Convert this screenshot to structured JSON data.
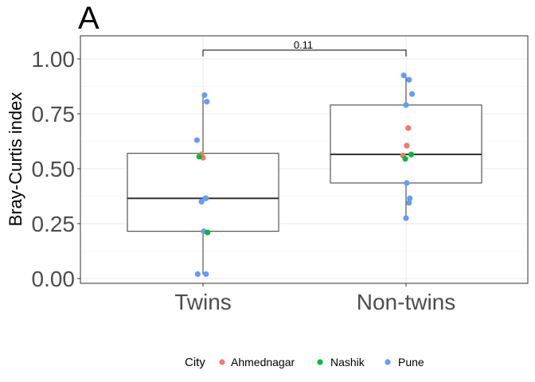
{
  "chart_data": {
    "type": "box",
    "panel_label": "A",
    "title": "",
    "xlabel": "",
    "ylabel": "Bray-Curtis index",
    "ylim": [
      0.0,
      1.0
    ],
    "yticks": [
      "0.00",
      "0.25",
      "0.50",
      "0.75",
      "1.00"
    ],
    "grid": true,
    "categories": [
      "Twins",
      "Non-twins"
    ],
    "boxes": [
      {
        "category": "Twins",
        "q1": 0.215,
        "median": 0.365,
        "q3": 0.57,
        "whisker_low": 0.02,
        "whisker_high": 0.835
      },
      {
        "category": "Non-twins",
        "q1": 0.435,
        "median": 0.565,
        "q3": 0.79,
        "whisker_low": 0.275,
        "whisker_high": 0.925
      }
    ],
    "comparison": {
      "groups": [
        "Twins",
        "Non-twins"
      ],
      "label": "0.11"
    },
    "legend": {
      "title": "City",
      "position": "bottom",
      "entries": [
        "Ahmednagar",
        "Nashik",
        "Pune"
      ]
    },
    "colors": {
      "Ahmednagar": "#F8766D",
      "Nashik": "#00BA38",
      "Pune": "#619CFF"
    },
    "points": [
      {
        "group": "Twins",
        "city": "Pune",
        "jitter": 0.02,
        "y": 0.835
      },
      {
        "group": "Twins",
        "city": "Pune",
        "jitter": 0.05,
        "y": 0.805
      },
      {
        "group": "Twins",
        "city": "Pune",
        "jitter": -0.08,
        "y": 0.63
      },
      {
        "group": "Twins",
        "city": "Ahmednagar",
        "jitter": -0.02,
        "y": 0.565
      },
      {
        "group": "Twins",
        "city": "Ahmednagar",
        "jitter": 0.0,
        "y": 0.55
      },
      {
        "group": "Twins",
        "city": "Nashik",
        "jitter": -0.05,
        "y": 0.555
      },
      {
        "group": "Twins",
        "city": "Pune",
        "jitter": 0.03,
        "y": 0.365
      },
      {
        "group": "Twins",
        "city": "Pune",
        "jitter": 0.04,
        "y": 0.365
      },
      {
        "group": "Twins",
        "city": "Pune",
        "jitter": -0.02,
        "y": 0.35
      },
      {
        "group": "Twins",
        "city": "Pune",
        "jitter": 0.01,
        "y": 0.215
      },
      {
        "group": "Twins",
        "city": "Nashik",
        "jitter": 0.06,
        "y": 0.21
      },
      {
        "group": "Twins",
        "city": "Pune",
        "jitter": -0.07,
        "y": 0.02
      },
      {
        "group": "Twins",
        "city": "Pune",
        "jitter": 0.04,
        "y": 0.02
      },
      {
        "group": "Non-twins",
        "city": "Pune",
        "jitter": -0.03,
        "y": 0.925
      },
      {
        "group": "Non-twins",
        "city": "Pune",
        "jitter": 0.04,
        "y": 0.905
      },
      {
        "group": "Non-twins",
        "city": "Pune",
        "jitter": 0.08,
        "y": 0.84
      },
      {
        "group": "Non-twins",
        "city": "Pune",
        "jitter": 0.0,
        "y": 0.79
      },
      {
        "group": "Non-twins",
        "city": "Ahmednagar",
        "jitter": 0.03,
        "y": 0.685
      },
      {
        "group": "Non-twins",
        "city": "Ahmednagar",
        "jitter": 0.01,
        "y": 0.605
      },
      {
        "group": "Non-twins",
        "city": "Ahmednagar",
        "jitter": -0.04,
        "y": 0.56
      },
      {
        "group": "Non-twins",
        "city": "Nashik",
        "jitter": 0.07,
        "y": 0.565
      },
      {
        "group": "Non-twins",
        "city": "Nashik",
        "jitter": -0.01,
        "y": 0.545
      },
      {
        "group": "Non-twins",
        "city": "Pune",
        "jitter": 0.01,
        "y": 0.435
      },
      {
        "group": "Non-twins",
        "city": "Pune",
        "jitter": 0.05,
        "y": 0.365
      },
      {
        "group": "Non-twins",
        "city": "Pune",
        "jitter": 0.04,
        "y": 0.345
      },
      {
        "group": "Non-twins",
        "city": "Pune",
        "jitter": 0.0,
        "y": 0.275
      }
    ]
  }
}
